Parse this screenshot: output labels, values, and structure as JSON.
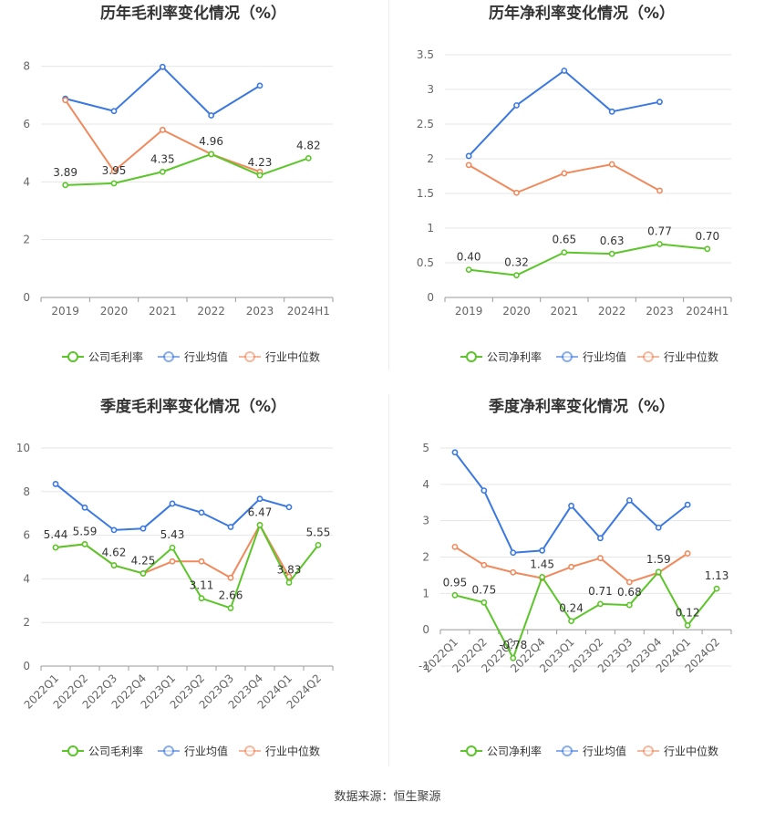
{
  "footer": {
    "source": "数据来源：恒生聚源"
  },
  "chart_data": [
    {
      "type": "line",
      "title": "历年毛利率变化情况（%）",
      "categories": [
        "2019",
        "2020",
        "2021",
        "2022",
        "2023",
        "2024H1"
      ],
      "yticks": [
        0,
        2,
        4,
        6,
        8
      ],
      "ylim": [
        0,
        8.4
      ],
      "grid": true,
      "legend_position": "bottom",
      "series": [
        {
          "name": "公司毛利率",
          "color": "#5cc52a",
          "labeled": true,
          "values": [
            3.89,
            3.95,
            4.35,
            4.96,
            4.23,
            4.82
          ],
          "labels": [
            "3.89",
            "3.95",
            "4.35",
            "4.96",
            "4.23",
            "4.82"
          ]
        },
        {
          "name": "行业均值",
          "color": "#3b78e0",
          "labeled": false,
          "values": [
            6.88,
            6.45,
            7.98,
            6.3,
            7.33,
            null
          ]
        },
        {
          "name": "行业中位数",
          "color": "#f08a5d",
          "labeled": false,
          "values": [
            6.83,
            4.37,
            5.8,
            4.96,
            4.35,
            null
          ]
        }
      ]
    },
    {
      "type": "line",
      "title": "历年净利率变化情况（%）",
      "categories": [
        "2019",
        "2020",
        "2021",
        "2022",
        "2023",
        "2024H1"
      ],
      "yticks": [
        0,
        0.5,
        1,
        1.5,
        2,
        2.5,
        3,
        3.5
      ],
      "ytick_labels": [
        "0",
        "0.5",
        "1",
        "1.5",
        "2",
        "2.5",
        "3",
        "3.5"
      ],
      "ylim": [
        0,
        3.5
      ],
      "grid": true,
      "legend_position": "bottom",
      "series": [
        {
          "name": "公司净利率",
          "color": "#5cc52a",
          "labeled": true,
          "values": [
            0.4,
            0.32,
            0.65,
            0.63,
            0.77,
            0.7
          ],
          "labels": [
            "0.40",
            "0.32",
            "0.65",
            "0.63",
            "0.77",
            "0.70"
          ]
        },
        {
          "name": "行业均值",
          "color": "#3b78e0",
          "labeled": false,
          "values": [
            2.04,
            2.77,
            3.27,
            2.68,
            2.82,
            null
          ]
        },
        {
          "name": "行业中位数",
          "color": "#f08a5d",
          "labeled": false,
          "values": [
            1.91,
            1.51,
            1.79,
            1.92,
            1.54,
            null
          ]
        }
      ]
    },
    {
      "type": "line",
      "title": "季度毛利率变化情况（%）",
      "categories": [
        "2022Q1",
        "2022Q2",
        "2022Q3",
        "2022Q4",
        "2023Q1",
        "2023Q2",
        "2023Q3",
        "2023Q4",
        "2024Q1",
        "2024Q2"
      ],
      "yticks": [
        0,
        2,
        4,
        6,
        8,
        10
      ],
      "ylim": [
        0,
        10
      ],
      "grid": true,
      "legend_position": "bottom",
      "series": [
        {
          "name": "公司毛利率",
          "color": "#5cc52a",
          "labeled": true,
          "values": [
            5.44,
            5.59,
            4.62,
            4.25,
            5.43,
            3.11,
            2.66,
            6.47,
            3.83,
            5.55
          ],
          "labels": [
            "5.44",
            "5.59",
            "4.62",
            "4.25",
            "5.43",
            "3.11",
            "2.66",
            "6.47",
            "3.83",
            "5.55"
          ]
        },
        {
          "name": "行业均值",
          "color": "#3b78e0",
          "labeled": false,
          "values": [
            8.35,
            7.27,
            6.24,
            6.31,
            7.45,
            7.04,
            6.38,
            7.67,
            7.29,
            null
          ]
        },
        {
          "name": "行业中位数",
          "color": "#f08a5d",
          "labeled": false,
          "values": [
            5.44,
            5.59,
            4.62,
            4.25,
            4.8,
            4.8,
            4.05,
            6.47,
            4.1,
            null
          ]
        }
      ]
    },
    {
      "type": "line",
      "title": "季度净利率变化情况（%）",
      "categories": [
        "2022Q1",
        "2022Q2",
        "2022Q3",
        "2022Q4",
        "2023Q1",
        "2023Q2",
        "2023Q3",
        "2023Q4",
        "2024Q1",
        "2024Q2"
      ],
      "yticks": [
        -1,
        0,
        1,
        2,
        3,
        4,
        5
      ],
      "ylim": [
        -1,
        5
      ],
      "grid": true,
      "legend_position": "bottom",
      "series": [
        {
          "name": "公司净利率",
          "color": "#5cc52a",
          "labeled": true,
          "values": [
            0.95,
            0.75,
            -0.78,
            1.45,
            0.24,
            0.71,
            0.68,
            1.59,
            0.12,
            1.13
          ],
          "labels": [
            "0.95",
            "0.75",
            "-0.78",
            "1.45",
            "0.24",
            "0.71",
            "0.68",
            "1.59",
            "0.12",
            "1.13"
          ]
        },
        {
          "name": "行业均值",
          "color": "#3b78e0",
          "labeled": false,
          "values": [
            4.88,
            3.83,
            2.12,
            2.18,
            3.41,
            2.52,
            3.56,
            2.81,
            3.44,
            null
          ]
        },
        {
          "name": "行业中位数",
          "color": "#f08a5d",
          "labeled": false,
          "values": [
            2.28,
            1.78,
            1.58,
            1.42,
            1.73,
            1.97,
            1.31,
            1.57,
            2.1,
            null
          ]
        }
      ]
    }
  ]
}
